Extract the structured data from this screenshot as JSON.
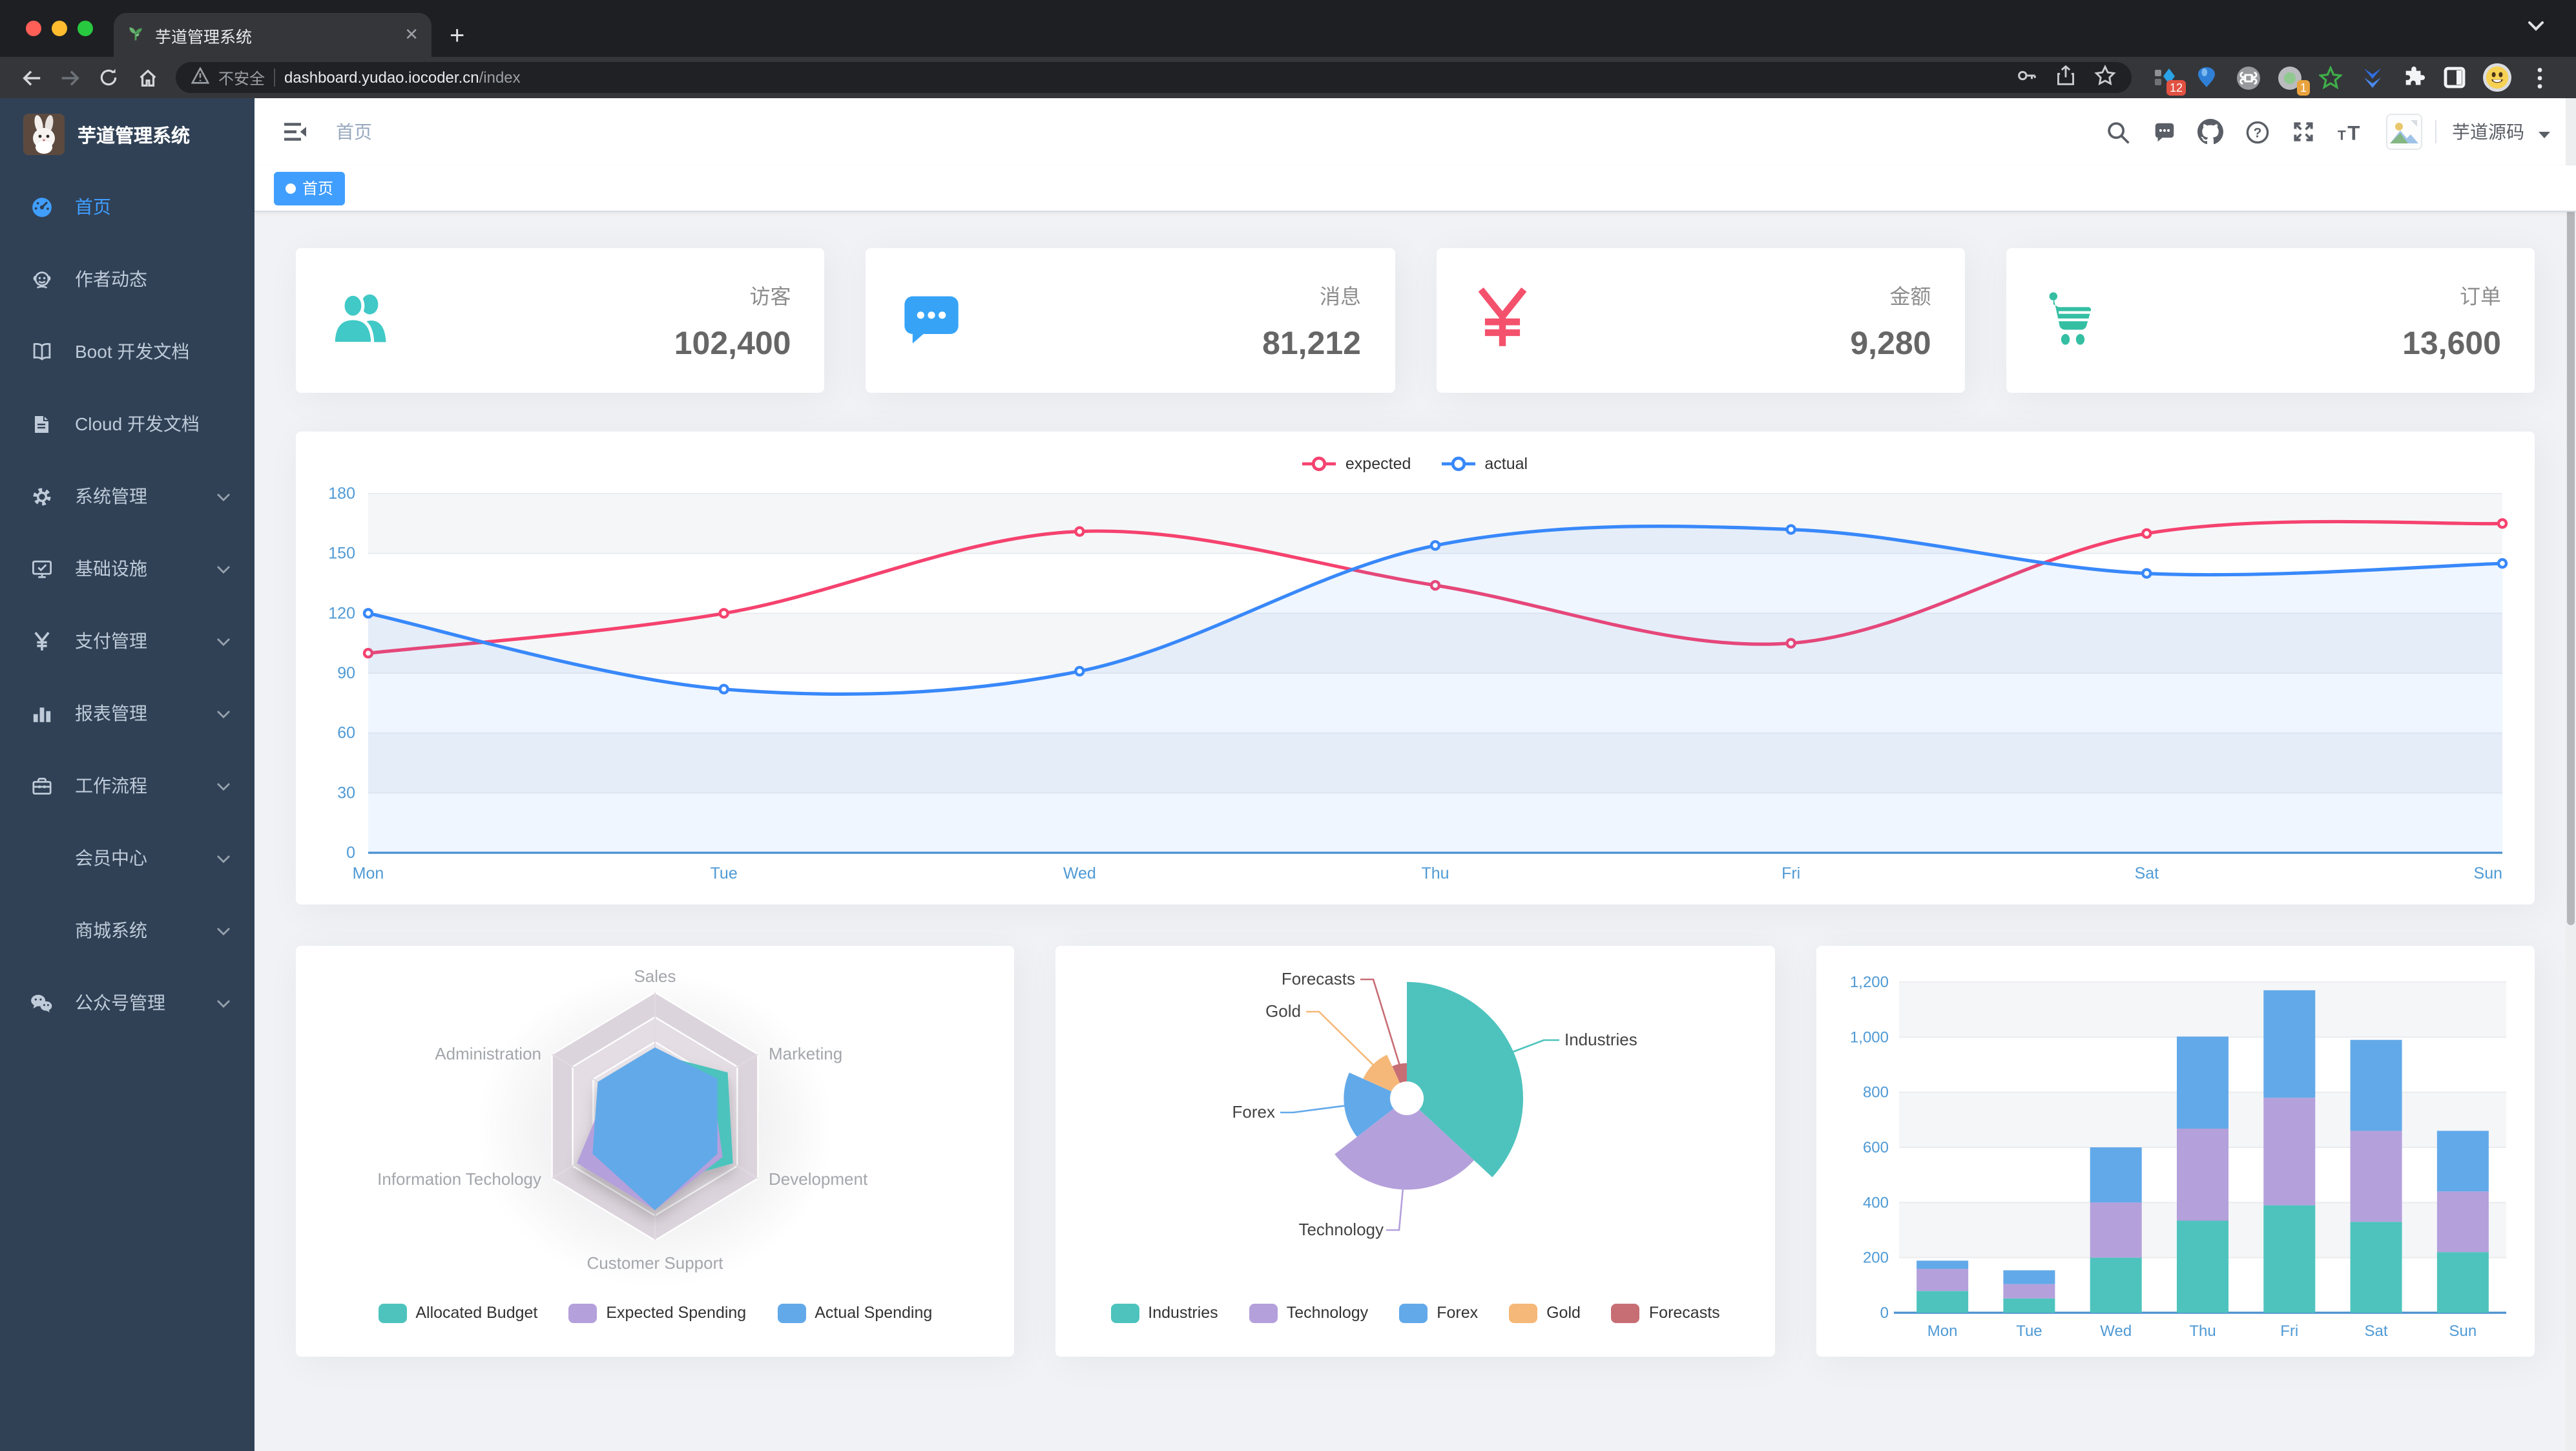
{
  "browser": {
    "tab_title": "芋道管理系统",
    "security_label": "不安全",
    "url_host": "dashboard.yudao.iocoder.cn",
    "url_path": "/index",
    "extension_badge_1": "12",
    "extension_badge_2": "1",
    "traffic_colors": [
      "#ff5f57",
      "#febc2e",
      "#28c840"
    ]
  },
  "sidebar": {
    "bg_color": "#304156",
    "active_color": "#409eff",
    "logo_title": "芋道管理系统",
    "items": [
      {
        "label": "首页",
        "icon": "dashboard-icon",
        "active": true,
        "arrow": false
      },
      {
        "label": "作者动态",
        "icon": "author-icon",
        "active": false,
        "arrow": false
      },
      {
        "label": "Boot 开发文档",
        "icon": "book-icon",
        "active": false,
        "arrow": false
      },
      {
        "label": "Cloud 开发文档",
        "icon": "document-icon",
        "active": false,
        "arrow": false
      },
      {
        "label": "系统管理",
        "icon": "gear-icon",
        "active": false,
        "arrow": true
      },
      {
        "label": "基础设施",
        "icon": "monitor-icon",
        "active": false,
        "arrow": true
      },
      {
        "label": "支付管理",
        "icon": "yen-icon",
        "active": false,
        "arrow": true
      },
      {
        "label": "报表管理",
        "icon": "bar-chart-icon",
        "active": false,
        "arrow": true
      },
      {
        "label": "工作流程",
        "icon": "toolbox-icon",
        "active": false,
        "arrow": true
      },
      {
        "label": "会员中心",
        "icon": "",
        "active": false,
        "arrow": true
      },
      {
        "label": "商城系统",
        "icon": "",
        "active": false,
        "arrow": true
      },
      {
        "label": "公众号管理",
        "icon": "wechat-icon",
        "active": false,
        "arrow": true
      }
    ]
  },
  "navbar": {
    "breadcrumb": "首页",
    "username": "芋道源码",
    "icons": [
      "search-icon",
      "message-icon",
      "github-icon",
      "question-icon",
      "fullscreen-icon",
      "font-size-icon"
    ]
  },
  "tags": {
    "active": "首页"
  },
  "stats": [
    {
      "title": "访客",
      "value": "102,400",
      "icon": "people-icon",
      "color": "#40c9c6"
    },
    {
      "title": "消息",
      "value": "81,212",
      "icon": "chat-icon",
      "color": "#36a3f7"
    },
    {
      "title": "金额",
      "value": "9,280",
      "icon": "money-icon",
      "color": "#f4516c"
    },
    {
      "title": "订单",
      "value": "13,600",
      "icon": "cart-icon",
      "color": "#34bfa3"
    }
  ],
  "chart_data": [
    {
      "id": "weekly-line",
      "type": "line",
      "categories": [
        "Mon",
        "Tue",
        "Wed",
        "Thu",
        "Fri",
        "Sat",
        "Sun"
      ],
      "series": [
        {
          "name": "expected",
          "color": "#f5426f",
          "values": [
            100,
            120,
            161,
            134,
            105,
            160,
            165
          ],
          "area": false
        },
        {
          "name": "actual",
          "color": "#3888fa",
          "values": [
            120,
            82,
            91,
            154,
            162,
            140,
            145
          ],
          "area": true
        }
      ],
      "ylim": [
        0,
        180
      ],
      "yticks": [
        "0",
        "30",
        "60",
        "90",
        "120",
        "150",
        "180"
      ],
      "legend_position": "top",
      "grid": true
    },
    {
      "id": "budget-radar",
      "type": "radar",
      "indicators": [
        {
          "name": "Sales",
          "max": 10000
        },
        {
          "name": "Administration",
          "max": 20000
        },
        {
          "name": "Information Techology",
          "max": 20000
        },
        {
          "name": "Customer Support",
          "max": 20000
        },
        {
          "name": "Development",
          "max": 20000
        },
        {
          "name": "Marketing",
          "max": 20000
        }
      ],
      "series": [
        {
          "name": "Allocated Budget",
          "color": "#4ec3bd",
          "values": [
            5000,
            7000,
            12000,
            11000,
            15000,
            14000
          ]
        },
        {
          "name": "Expected Spending",
          "color": "#b4a0db",
          "values": [
            4000,
            9000,
            15000,
            15000,
            13000,
            11000
          ]
        },
        {
          "name": "Actual Spending",
          "color": "#62a9e9",
          "values": [
            5500,
            11000,
            12000,
            15000,
            12000,
            12000
          ]
        }
      ],
      "legend_position": "bottom"
    },
    {
      "id": "weekly-rose-pie",
      "type": "pie",
      "rose": true,
      "inner_radius": 13,
      "outer_radius": 90,
      "data": [
        {
          "name": "Industries",
          "value": 320,
          "color": "#4ec3bd"
        },
        {
          "name": "Technology",
          "value": 240,
          "color": "#b4a0db"
        },
        {
          "name": "Forex",
          "value": 149,
          "color": "#62a9e9"
        },
        {
          "name": "Gold",
          "value": 100,
          "color": "#f5b878"
        },
        {
          "name": "Forecasts",
          "value": 59,
          "color": "#c76e75"
        }
      ],
      "legend_position": "bottom"
    },
    {
      "id": "weekly-stacked-bar",
      "type": "bar",
      "stacked": true,
      "categories": [
        "Mon",
        "Tue",
        "Wed",
        "Thu",
        "Fri",
        "Sat",
        "Sun"
      ],
      "series": [
        {
          "color": "#4ec3bd",
          "values": [
            79,
            52,
            200,
            334,
            390,
            330,
            220
          ]
        },
        {
          "color": "#b4a0db",
          "values": [
            80,
            52,
            200,
            334,
            390,
            330,
            220
          ]
        },
        {
          "color": "#62a9e9",
          "values": [
            30,
            50,
            200,
            334,
            390,
            330,
            220
          ]
        }
      ],
      "ylim": [
        0,
        1200
      ],
      "yticks": [
        "0",
        "200",
        "400",
        "600",
        "800",
        "1,000",
        "1,200"
      ]
    }
  ]
}
